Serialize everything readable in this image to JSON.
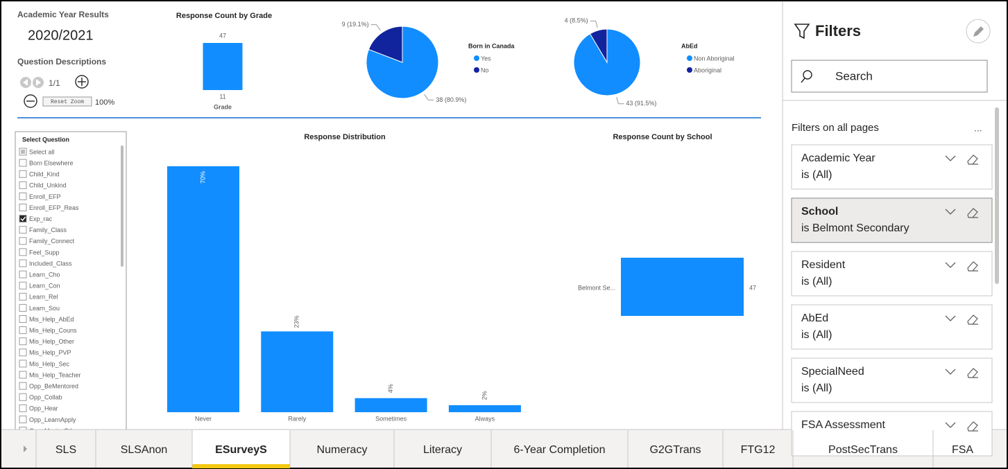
{
  "header": {
    "label": "Academic Year Results",
    "year": "2020/2021",
    "question_descriptions": "Question Descriptions",
    "page_indicator": "1/1",
    "reset_zoom": "Reset Zoom",
    "zoom": "100%"
  },
  "grade_chart": {
    "type": "bar",
    "title": "Response Count by Grade",
    "categories": [
      "11"
    ],
    "values": [
      47
    ],
    "x_label": "Grade",
    "color": "#118dff"
  },
  "born_chart": {
    "type": "pie",
    "title": "Born in Canada",
    "categories": [
      "Yes",
      "No"
    ],
    "values": [
      38,
      9
    ],
    "value_labels": [
      "38 (80.9%)",
      "9 (19.1%)"
    ],
    "colors": [
      "#118dff",
      "#12239e"
    ]
  },
  "abed_chart": {
    "type": "pie",
    "title": "AbEd",
    "categories": [
      "Non Aboriginal",
      "Aboriginal"
    ],
    "values": [
      43,
      4
    ],
    "value_labels": [
      "43 (91.5%)",
      "4 (8.5%)"
    ],
    "colors": [
      "#118dff",
      "#12239e"
    ]
  },
  "slicer": {
    "title": "Select Question",
    "items": [
      {
        "label": "Select all",
        "state": "partial"
      },
      {
        "label": "Born Elsewhere",
        "state": "unchecked"
      },
      {
        "label": "Child_Kind",
        "state": "unchecked"
      },
      {
        "label": "Child_Unkind",
        "state": "unchecked"
      },
      {
        "label": "Enroll_EFP",
        "state": "unchecked"
      },
      {
        "label": "Enroll_EFP_Reas",
        "state": "unchecked"
      },
      {
        "label": "Exp_rac",
        "state": "checked"
      },
      {
        "label": "Family_Class",
        "state": "unchecked"
      },
      {
        "label": "Family_Connect",
        "state": "unchecked"
      },
      {
        "label": "Feel_Supp",
        "state": "unchecked"
      },
      {
        "label": "Included_Class",
        "state": "unchecked"
      },
      {
        "label": "Learn_Cho",
        "state": "unchecked"
      },
      {
        "label": "Learn_Con",
        "state": "unchecked"
      },
      {
        "label": "Learn_Rel",
        "state": "unchecked"
      },
      {
        "label": "Learn_Sou",
        "state": "unchecked"
      },
      {
        "label": "Mis_Help_AbEd",
        "state": "unchecked"
      },
      {
        "label": "Mis_Help_Couns",
        "state": "unchecked"
      },
      {
        "label": "Mis_Help_Other",
        "state": "unchecked"
      },
      {
        "label": "Mis_Help_PVP",
        "state": "unchecked"
      },
      {
        "label": "Mis_Help_Sec",
        "state": "unchecked"
      },
      {
        "label": "Mis_Help_Teacher",
        "state": "unchecked"
      },
      {
        "label": "Opp_BeMentored",
        "state": "unchecked"
      },
      {
        "label": "Opp_Collab",
        "state": "unchecked"
      },
      {
        "label": "Opp_Hear",
        "state": "unchecked"
      },
      {
        "label": "Opp_LearnApply",
        "state": "unchecked"
      },
      {
        "label": "Opp_MentorOther",
        "state": "unchecked"
      }
    ]
  },
  "distribution_chart": {
    "type": "bar",
    "title": "Response Distribution",
    "categories": [
      "Never",
      "Rarely",
      "Sometimes",
      "Always"
    ],
    "values": [
      70,
      23,
      4,
      2
    ],
    "value_labels": [
      "70%",
      "23%",
      "4%",
      "2%"
    ],
    "color": "#118dff"
  },
  "school_chart": {
    "type": "bar",
    "orientation": "horizontal",
    "title": "Response Count by School",
    "categories": [
      "Belmont Se..."
    ],
    "values": [
      47
    ],
    "color": "#118dff"
  },
  "filters": {
    "title": "Filters",
    "search": "Search",
    "section": "Filters on all pages",
    "more": "...",
    "cards": [
      {
        "name": "Academic Year",
        "state": "is (All)"
      },
      {
        "name": "School",
        "state": "is Belmont Secondary",
        "active": true
      },
      {
        "name": "Resident",
        "state": "is (All)"
      },
      {
        "name": "AbEd",
        "state": "is (All)"
      },
      {
        "name": "SpecialNeed",
        "state": "is (All)"
      },
      {
        "name": "FSA Assessment"
      }
    ]
  },
  "tabs": {
    "items": [
      "SLS",
      "SLSAnon",
      "ESurveyS",
      "Numeracy",
      "Literacy",
      "6-Year Completion",
      "G2GTrans",
      "FTG12",
      "PostSecTrans",
      "FSA"
    ],
    "active": 2
  }
}
